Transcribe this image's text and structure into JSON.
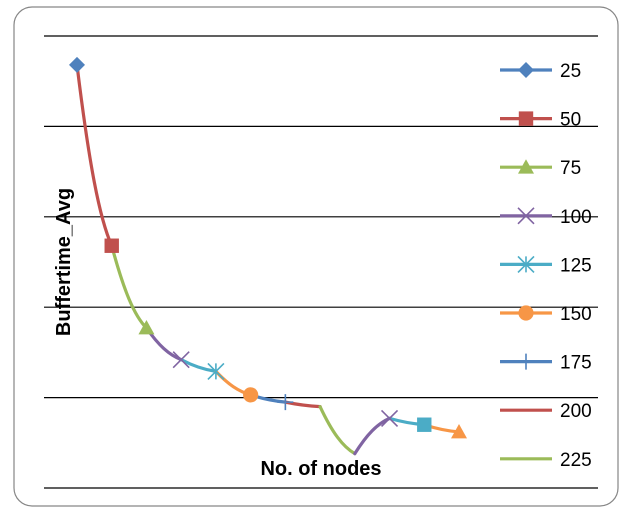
{
  "chart_data": {
    "type": "line",
    "title": "",
    "xlabel": "No. of nodes",
    "ylabel": "Buffertime_Avg",
    "ylim": [
      0,
      5
    ],
    "grid": true,
    "legend_position": "right",
    "y_gridlines": [
      0,
      1,
      2,
      3,
      4,
      5
    ],
    "series": [
      {
        "name": "25",
        "color": "#4f81bd",
        "marker": "diamond",
        "points": [
          [
            1,
            4.68
          ]
        ]
      },
      {
        "name": "50",
        "color": "#c0504d",
        "marker": "square",
        "points": [
          [
            1,
            4.68
          ],
          [
            2,
            2.68
          ]
        ]
      },
      {
        "name": "75",
        "color": "#9bbb59",
        "marker": "triangle",
        "points": [
          [
            2,
            2.68
          ],
          [
            3,
            1.77
          ]
        ]
      },
      {
        "name": "100",
        "color": "#8064a2",
        "marker": "x",
        "points": [
          [
            3,
            1.77
          ],
          [
            4,
            1.42
          ]
        ]
      },
      {
        "name": "125",
        "color": "#4bacc6",
        "marker": "star",
        "points": [
          [
            4,
            1.42
          ],
          [
            5,
            1.29
          ]
        ]
      },
      {
        "name": "150",
        "color": "#f79646",
        "marker": "circle",
        "points": [
          [
            5,
            1.29
          ],
          [
            6,
            1.03
          ]
        ]
      },
      {
        "name": "175",
        "color": "#4f81bd",
        "marker": "plus",
        "points": [
          [
            6,
            1.03
          ],
          [
            7,
            0.95
          ]
        ]
      },
      {
        "name": "200",
        "color": "#c0504d",
        "marker": "none",
        "points": [
          [
            7,
            0.95
          ],
          [
            8,
            0.9
          ]
        ]
      },
      {
        "name": "225",
        "color": "#9bbb59",
        "marker": "none",
        "points": [
          [
            8,
            0.9
          ],
          [
            9,
            0.38
          ]
        ]
      },
      {
        "name": "",
        "color": "#8064a2",
        "marker": "x",
        "points": [
          [
            9,
            0.38
          ],
          [
            10,
            0.77
          ]
        ]
      },
      {
        "name": "",
        "color": "#4bacc6",
        "marker": "square",
        "points": [
          [
            10,
            0.77
          ],
          [
            11,
            0.7
          ]
        ]
      },
      {
        "name": "",
        "color": "#f79646",
        "marker": "triangle",
        "points": [
          [
            11,
            0.7
          ],
          [
            12,
            0.62
          ]
        ]
      }
    ]
  }
}
